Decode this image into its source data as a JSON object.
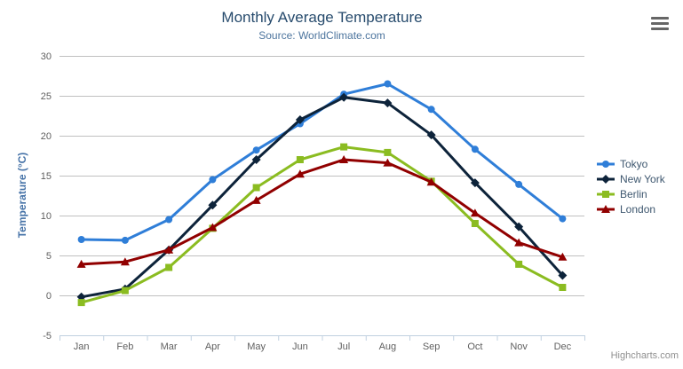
{
  "credit": "Highcharts.com",
  "export_menu": {
    "icon": "hamburger-icon"
  },
  "chart_data": {
    "type": "line",
    "title": "Monthly Average Temperature",
    "subtitle": "Source: WorldClimate.com",
    "xlabel": "",
    "ylabel": "Temperature (°C)",
    "categories": [
      "Jan",
      "Feb",
      "Mar",
      "Apr",
      "May",
      "Jun",
      "Jul",
      "Aug",
      "Sep",
      "Oct",
      "Nov",
      "Dec"
    ],
    "series": [
      {
        "name": "Tokyo",
        "color": "#2f7ed8",
        "marker": "circle",
        "values": [
          7.0,
          6.9,
          9.5,
          14.5,
          18.2,
          21.5,
          25.2,
          26.5,
          23.3,
          18.3,
          13.9,
          9.6
        ]
      },
      {
        "name": "New York",
        "color": "#0d233a",
        "marker": "diamond",
        "values": [
          -0.2,
          0.8,
          5.7,
          11.3,
          17.0,
          22.0,
          24.8,
          24.1,
          20.1,
          14.1,
          8.6,
          2.5
        ]
      },
      {
        "name": "Berlin",
        "color": "#8bbc21",
        "marker": "square",
        "values": [
          -0.9,
          0.6,
          3.5,
          8.4,
          13.5,
          17.0,
          18.6,
          17.9,
          14.3,
          9.0,
          3.9,
          1.0
        ]
      },
      {
        "name": "London",
        "color": "#910000",
        "marker": "triangle",
        "values": [
          3.9,
          4.2,
          5.7,
          8.5,
          11.9,
          15.2,
          17.0,
          16.6,
          14.2,
          10.3,
          6.6,
          4.8
        ]
      }
    ],
    "ylim": [
      -5,
      30
    ],
    "yticks": [
      -5,
      0,
      5,
      10,
      15,
      20,
      25,
      30
    ],
    "grid": true,
    "legend_position": "right",
    "colors": {
      "grid_line": "#c0c0c0",
      "axis_line": "#c0d0e0",
      "axis_label": "#606060",
      "title": "#274b6d",
      "subtitle": "#4d759e",
      "legend_text": "#3e576f"
    }
  }
}
